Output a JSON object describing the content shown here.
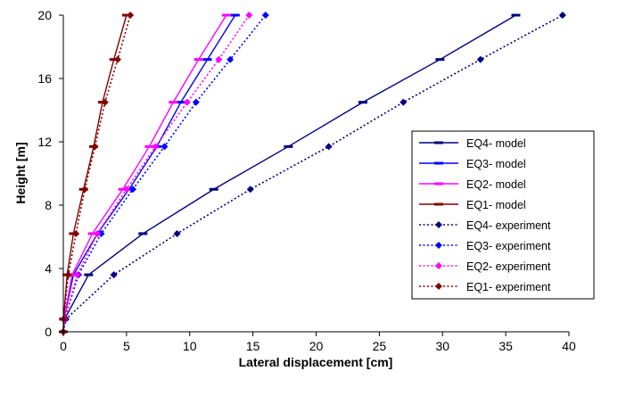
{
  "chart_data": {
    "type": "line",
    "title": "",
    "xlabel": "Lateral displacement [cm]",
    "ylabel": "Height [m]",
    "xlim": [
      0,
      40
    ],
    "ylim": [
      0,
      20
    ],
    "xticks": [
      "0",
      "5",
      "10",
      "15",
      "20",
      "25",
      "30",
      "35",
      "40"
    ],
    "yticks": [
      "0",
      "4",
      "8",
      "12",
      "16",
      "20"
    ],
    "grid": false,
    "legend_position": "right",
    "series": [
      {
        "name": "EQ4- model",
        "color": "#000080",
        "style": "solid",
        "marker": "dash",
        "x": [
          0,
          0.1,
          2.0,
          6.3,
          11.9,
          17.8,
          23.7,
          29.8,
          35.8
        ],
        "y": [
          0,
          0.8,
          3.6,
          6.2,
          9.0,
          11.7,
          14.5,
          17.2,
          20.0
        ]
      },
      {
        "name": "EQ3- model",
        "color": "#0000FF",
        "style": "solid",
        "marker": "dash",
        "x": [
          0,
          0.05,
          0.8,
          2.7,
          5.2,
          7.4,
          9.3,
          11.4,
          13.6
        ],
        "y": [
          0,
          0.8,
          3.6,
          6.2,
          9.0,
          11.7,
          14.5,
          17.2,
          20.0
        ]
      },
      {
        "name": "EQ2- model",
        "color": "#FF00FF",
        "style": "solid",
        "marker": "dash",
        "x": [
          0,
          0.05,
          0.7,
          2.3,
          4.7,
          6.8,
          8.7,
          10.7,
          12.9
        ],
        "y": [
          0,
          0.8,
          3.6,
          6.2,
          9.0,
          11.7,
          14.5,
          17.2,
          20.0
        ]
      },
      {
        "name": "EQ1- model",
        "color": "#800000",
        "style": "solid",
        "marker": "dash",
        "x": [
          0,
          0.02,
          0.3,
          0.8,
          1.6,
          2.4,
          3.1,
          4.0,
          5.0
        ],
        "y": [
          0,
          0.8,
          3.6,
          6.2,
          9.0,
          11.7,
          14.5,
          17.2,
          20.0
        ]
      },
      {
        "name": "EQ4- experiment",
        "color": "#000080",
        "style": "dotted",
        "marker": "diamond",
        "x": [
          0,
          0.2,
          4.0,
          9.0,
          14.8,
          21.0,
          26.9,
          33.0,
          39.5
        ],
        "y": [
          0,
          0.8,
          3.6,
          6.2,
          9.0,
          11.7,
          14.5,
          17.2,
          20.0
        ]
      },
      {
        "name": "EQ3- experiment",
        "color": "#0000FF",
        "style": "dotted",
        "marker": "diamond",
        "x": [
          0,
          0.1,
          1.2,
          3.0,
          5.5,
          8.0,
          10.5,
          13.2,
          16.0
        ],
        "y": [
          0,
          0.8,
          3.6,
          6.2,
          9.0,
          11.7,
          14.5,
          17.2,
          20.0
        ]
      },
      {
        "name": "EQ2- experiment",
        "color": "#FF00FF",
        "style": "dotted",
        "marker": "diamond",
        "x": [
          0,
          0.1,
          1.1,
          2.7,
          5.0,
          7.3,
          9.8,
          12.3,
          14.7
        ],
        "y": [
          0,
          0.8,
          3.6,
          6.2,
          9.0,
          11.7,
          14.5,
          17.2,
          20.0
        ]
      },
      {
        "name": "EQ1- experiment",
        "color": "#800000",
        "style": "dotted",
        "marker": "diamond",
        "x": [
          0,
          0.02,
          0.4,
          1.0,
          1.7,
          2.5,
          3.3,
          4.3,
          5.3
        ],
        "y": [
          0,
          0.8,
          3.6,
          6.2,
          9.0,
          11.7,
          14.5,
          17.2,
          20.0
        ]
      }
    ]
  }
}
